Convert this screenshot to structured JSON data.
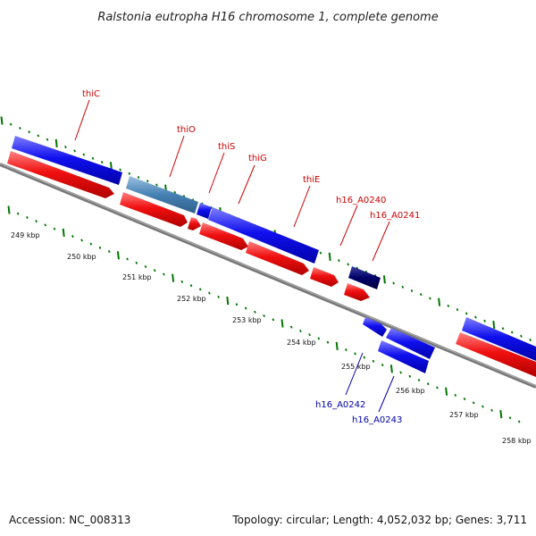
{
  "title": "Ralstonia eutropha H16 chromosome 1, complete genome",
  "footer": {
    "accession": "Accession: NC_008313",
    "topology": "Topology: circular; Length: 4,052,032 bp; Genes: 3,711"
  },
  "scale_labels": [
    "249 kbp",
    "250 kbp",
    "251 kbp",
    "252 kbp",
    "253 kbp",
    "254 kbp",
    "255 kbp",
    "256 kbp",
    "257 kbp",
    "258 kbp"
  ],
  "gene_labels": {
    "thiC": "thiC",
    "thiO": "thiO",
    "thiS": "thiS",
    "thiG": "thiG",
    "thiE": "thiE",
    "h16_A0240": "h16_A0240",
    "h16_A0241": "h16_A0241",
    "h16_A0242": "h16_A0242",
    "h16_A0243": "h16_A0243"
  },
  "colors": {
    "forward_gene": "#0000ee",
    "reverse_gene": "#ee0000",
    "highlight_gene": "#4682b4",
    "dark_gene": "#000066",
    "backbone": "#888888",
    "tick": "#007700",
    "label_red": "#cc0000",
    "label_blue": "#0000aa"
  }
}
